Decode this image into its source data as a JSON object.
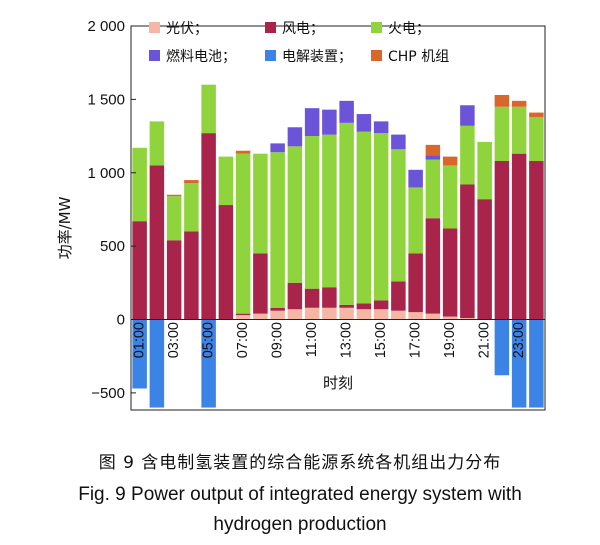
{
  "figure": {
    "caption_zh": "图 9   含电制氢装置的综合能源系统各机组出力分布",
    "caption_en_line1": "Fig. 9    Power output of integrated energy system with",
    "caption_en_line2": "hydrogen production"
  },
  "chart_data": {
    "type": "bar",
    "stacked": true,
    "xlabel": "时刻",
    "ylabel": "功率/MW",
    "ylim": [
      -600,
      2000
    ],
    "yticks": [
      -500,
      0,
      500,
      1000,
      1500,
      2000
    ],
    "ytick_labels": [
      "−500",
      "0",
      "500",
      "1 000",
      "1 500",
      "2 000"
    ],
    "categories": [
      "01:00",
      "02:00",
      "03:00",
      "04:00",
      "05:00",
      "06:00",
      "07:00",
      "08:00",
      "09:00",
      "10:00",
      "11:00",
      "12:00",
      "13:00",
      "14:00",
      "15:00",
      "16:00",
      "17:00",
      "18:00",
      "19:00",
      "20:00",
      "21:00",
      "22:00",
      "23:00",
      "24:00"
    ],
    "xtick_labels": [
      "01:00",
      "03:00",
      "05:00",
      "07:00",
      "09:00",
      "11:00",
      "13:00",
      "15:00",
      "17:00",
      "19:00",
      "21:00",
      "23:00"
    ],
    "legend_position": "top",
    "series": [
      {
        "name": "光伏；",
        "color": "#f5b7a3",
        "values": [
          0,
          0,
          0,
          0,
          0,
          0,
          30,
          40,
          60,
          70,
          80,
          80,
          80,
          70,
          70,
          60,
          50,
          40,
          20,
          10,
          0,
          0,
          0,
          0
        ]
      },
      {
        "name": "风电；",
        "color": "#a8244a",
        "values": [
          670,
          1050,
          540,
          600,
          1270,
          780,
          10,
          410,
          20,
          180,
          130,
          140,
          20,
          40,
          60,
          200,
          400,
          650,
          600,
          910,
          820,
          1080,
          1130,
          1080
        ]
      },
      {
        "name": "火电；",
        "color": "#8fd43c",
        "values": [
          500,
          300,
          300,
          330,
          330,
          330,
          1090,
          680,
          1060,
          930,
          1040,
          1040,
          1240,
          1170,
          1140,
          900,
          450,
          400,
          430,
          400,
          390,
          370,
          320,
          300
        ]
      },
      {
        "name": "燃料电池；",
        "color": "#6b54d8",
        "values": [
          0,
          0,
          0,
          0,
          0,
          0,
          0,
          0,
          60,
          130,
          190,
          170,
          150,
          120,
          80,
          100,
          120,
          30,
          0,
          140,
          0,
          0,
          0,
          0
        ]
      },
      {
        "name": "电解装置；",
        "color": "#3c83e6",
        "values": [
          -470,
          -600,
          0,
          0,
          -600,
          0,
          0,
          0,
          0,
          0,
          0,
          0,
          0,
          0,
          0,
          0,
          0,
          0,
          0,
          0,
          0,
          -380,
          -600,
          -600
        ]
      },
      {
        "name": "CHP 机组",
        "color": "#d9662a",
        "values": [
          0,
          0,
          10,
          20,
          0,
          0,
          20,
          0,
          0,
          0,
          0,
          0,
          0,
          0,
          0,
          0,
          0,
          70,
          60,
          0,
          0,
          80,
          40,
          30
        ]
      }
    ]
  }
}
